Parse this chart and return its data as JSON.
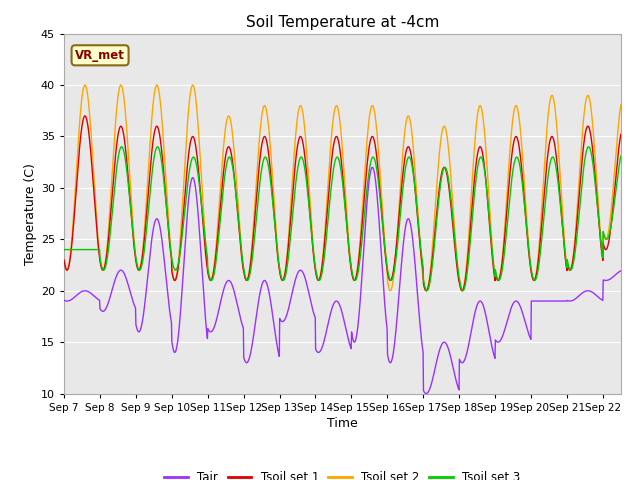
{
  "title": "Soil Temperature at -4cm",
  "xlabel": "Time",
  "ylabel": "Temperature (C)",
  "ylim": [
    10,
    45
  ],
  "yticks": [
    10,
    15,
    20,
    25,
    30,
    35,
    40,
    45
  ],
  "x_tick_labels": [
    "Sep 7",
    "Sep 8",
    "Sep 9",
    "Sep 10",
    "Sep 11",
    "Sep 12",
    "Sep 13",
    "Sep 14",
    "Sep 15",
    "Sep 16",
    "Sep 17",
    "Sep 18",
    "Sep 19",
    "Sep 20",
    "Sep 21",
    "Sep 22"
  ],
  "colors": {
    "Tair": "#9b30ff",
    "Tsoil1": "#dd0000",
    "Tsoil2": "#ffa500",
    "Tsoil3": "#00cc00"
  },
  "legend_label": "VR_met",
  "background_plot": "#e8e8e8",
  "background_fig": "#ffffff",
  "grid_color": "#ffffff",
  "linewidth": 1.0,
  "tair_peaks": [
    20,
    22,
    27,
    31,
    21,
    21,
    22,
    19,
    32,
    27,
    15,
    19,
    19,
    19,
    20,
    22
  ],
  "tair_troughs": [
    19,
    18,
    16,
    14,
    16,
    13,
    17,
    14,
    15,
    13,
    10,
    13,
    15,
    19,
    19,
    21
  ],
  "tsoil2_peaks": [
    40,
    40,
    40,
    40,
    37,
    38,
    38,
    38,
    38,
    37,
    36,
    38,
    38,
    39,
    39,
    39
  ],
  "tsoil2_troughs": [
    22,
    22,
    22,
    21,
    21,
    21,
    21,
    21,
    21,
    20,
    20,
    20,
    21,
    21,
    22,
    25
  ],
  "tsoil1_peaks": [
    37,
    36,
    36,
    35,
    34,
    35,
    35,
    35,
    35,
    34,
    32,
    34,
    35,
    35,
    36,
    36
  ],
  "tsoil1_troughs": [
    22,
    22,
    22,
    21,
    21,
    21,
    21,
    21,
    21,
    21,
    20,
    20,
    21,
    21,
    22,
    24
  ],
  "tsoil3_peaks": [
    24,
    34,
    34,
    33,
    33,
    33,
    33,
    33,
    33,
    33,
    32,
    33,
    33,
    33,
    34,
    34
  ],
  "tsoil3_troughs": [
    24,
    22,
    22,
    22,
    21,
    21,
    21,
    21,
    21,
    21,
    20,
    20,
    21,
    21,
    22,
    25
  ]
}
